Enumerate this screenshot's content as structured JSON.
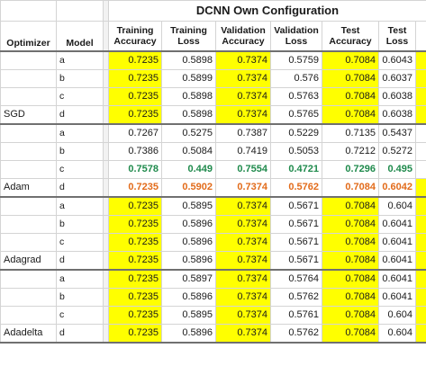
{
  "table": {
    "title": "DCNN Own Configuration",
    "headers": {
      "optimizer": "Optimizer",
      "model": "Model",
      "train_acc": [
        "Training",
        "Accuracy"
      ],
      "train_loss": [
        "Training",
        "Loss"
      ],
      "val_acc": [
        "Validation",
        "Accuracy"
      ],
      "val_loss": [
        "Validation",
        "Loss"
      ],
      "test_acc": [
        "Test",
        "Accuracy"
      ],
      "test_loss": [
        "Test",
        "Loss"
      ]
    },
    "highlight_color": "#ffff00",
    "green_color": "#1f8a4c",
    "orange_color": "#e26b1a",
    "groups": [
      {
        "optimizer": "SGD",
        "highlight": true,
        "rows": [
          {
            "model": "a",
            "v": [
              "0.7235",
              "0.5898",
              "0.7374",
              "0.5759",
              "0.7084",
              "0.6043"
            ]
          },
          {
            "model": "b",
            "v": [
              "0.7235",
              "0.5899",
              "0.7374",
              "0.576",
              "0.7084",
              "0.6037"
            ]
          },
          {
            "model": "c",
            "v": [
              "0.7235",
              "0.5898",
              "0.7374",
              "0.5763",
              "0.7084",
              "0.6038"
            ]
          },
          {
            "model": "d",
            "v": [
              "0.7235",
              "0.5898",
              "0.7374",
              "0.5765",
              "0.7084",
              "0.6038"
            ]
          }
        ]
      },
      {
        "optimizer": "Adam",
        "highlight": false,
        "rows": [
          {
            "model": "a",
            "v": [
              "0.7267",
              "0.5275",
              "0.7387",
              "0.5229",
              "0.7135",
              "0.5437"
            ]
          },
          {
            "model": "b",
            "v": [
              "0.7386",
              "0.5084",
              "0.7419",
              "0.5053",
              "0.7212",
              "0.5272"
            ]
          },
          {
            "model": "c",
            "v": [
              "0.7578",
              "0.449",
              "0.7554",
              "0.4721",
              "0.7296",
              "0.495"
            ],
            "style": "green"
          },
          {
            "model": "d",
            "v": [
              "0.7235",
              "0.5902",
              "0.7374",
              "0.5762",
              "0.7084",
              "0.6042"
            ],
            "style": "orange"
          }
        ]
      },
      {
        "optimizer": "Adagrad",
        "highlight": true,
        "rows": [
          {
            "model": "a",
            "v": [
              "0.7235",
              "0.5895",
              "0.7374",
              "0.5671",
              "0.7084",
              "0.604"
            ]
          },
          {
            "model": "b",
            "v": [
              "0.7235",
              "0.5896",
              "0.7374",
              "0.5671",
              "0.7084",
              "0.6041"
            ]
          },
          {
            "model": "c",
            "v": [
              "0.7235",
              "0.5896",
              "0.7374",
              "0.5671",
              "0.7084",
              "0.6041"
            ]
          },
          {
            "model": "d",
            "v": [
              "0.7235",
              "0.5896",
              "0.7374",
              "0.5671",
              "0.7084",
              "0.6041"
            ]
          }
        ]
      },
      {
        "optimizer": "Adadelta",
        "highlight": true,
        "rows": [
          {
            "model": "a",
            "v": [
              "0.7235",
              "0.5897",
              "0.7374",
              "0.5764",
              "0.7084",
              "0.6041"
            ]
          },
          {
            "model": "b",
            "v": [
              "0.7235",
              "0.5896",
              "0.7374",
              "0.5762",
              "0.7084",
              "0.6041"
            ]
          },
          {
            "model": "c",
            "v": [
              "0.7235",
              "0.5895",
              "0.7374",
              "0.5761",
              "0.7084",
              "0.604"
            ]
          },
          {
            "model": "d",
            "v": [
              "0.7235",
              "0.5896",
              "0.7374",
              "0.5762",
              "0.7084",
              "0.604"
            ]
          }
        ]
      }
    ]
  }
}
